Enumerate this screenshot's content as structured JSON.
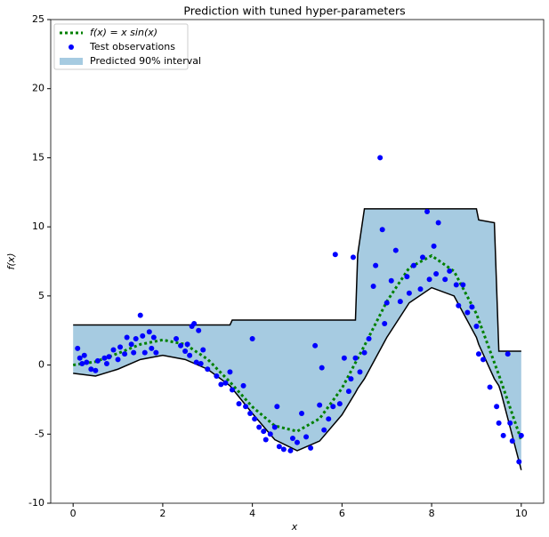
{
  "chart_data": {
    "type": "line",
    "title": "Prediction with tuned hyper-parameters",
    "xlabel": "x",
    "ylabel": "f(x)",
    "xlim": [
      -0.5,
      10.5
    ],
    "ylim": [
      -10,
      25
    ],
    "xticks": [
      0,
      2,
      4,
      6,
      8,
      10
    ],
    "yticks": [
      -10,
      -5,
      0,
      5,
      10,
      15,
      20,
      25
    ],
    "grid": false,
    "legend": "upper left",
    "series": [
      {
        "name": "f(x) = x sin(x)",
        "kind": "line",
        "color": "#008000",
        "x": [
          0,
          0.5,
          1,
          1.5,
          2,
          2.5,
          3,
          3.5,
          4,
          4.5,
          5,
          5.5,
          6,
          6.5,
          7,
          7.5,
          8,
          8.5,
          9,
          9.5,
          10
        ],
        "values": [
          0,
          0.24,
          0.841,
          1.496,
          1.819,
          1.496,
          0.423,
          -1.228,
          -3.027,
          -4.399,
          -4.795,
          -3.88,
          -1.676,
          1.398,
          4.599,
          7.035,
          7.915,
          6.787,
          3.709,
          -0.714,
          -5.44
        ]
      },
      {
        "name": "Test observations",
        "kind": "scatter",
        "color": "#0000ff",
        "x": [
          0.1,
          0.15,
          0.2,
          0.25,
          0.3,
          0.4,
          0.5,
          0.55,
          0.7,
          0.75,
          0.8,
          0.9,
          1.0,
          1.05,
          1.15,
          1.2,
          1.3,
          1.35,
          1.4,
          1.5,
          1.55,
          1.6,
          1.7,
          1.75,
          1.8,
          1.85,
          2.3,
          2.4,
          2.5,
          2.55,
          2.6,
          2.65,
          2.7,
          2.75,
          2.8,
          2.85,
          2.9,
          3.0,
          3.2,
          3.3,
          3.4,
          3.5,
          3.55,
          3.7,
          3.8,
          3.85,
          3.95,
          4.0,
          4.05,
          4.15,
          4.25,
          4.3,
          4.4,
          4.5,
          4.55,
          4.6,
          4.7,
          4.85,
          4.9,
          5.0,
          5.1,
          5.2,
          5.3,
          5.4,
          5.5,
          5.55,
          5.6,
          5.7,
          5.8,
          5.85,
          5.95,
          6.05,
          6.15,
          6.2,
          6.25,
          6.3,
          6.4,
          6.5,
          6.6,
          6.7,
          6.75,
          6.85,
          6.9,
          6.95,
          7.0,
          7.1,
          7.2,
          7.3,
          7.45,
          7.5,
          7.6,
          7.75,
          7.8,
          7.9,
          7.95,
          8.05,
          8.1,
          8.15,
          8.3,
          8.4,
          8.55,
          8.6,
          8.7,
          8.8,
          8.9,
          9.0,
          9.05,
          9.15,
          9.3,
          9.45,
          9.5,
          9.6,
          9.7,
          9.75,
          9.8,
          9.95,
          10.0
        ],
        "values": [
          1.2,
          0.5,
          0.1,
          0.7,
          0.2,
          -0.3,
          -0.4,
          0.3,
          0.5,
          0.1,
          0.6,
          1.1,
          0.4,
          1.3,
          0.8,
          2.0,
          1.5,
          0.9,
          1.9,
          3.6,
          2.1,
          0.9,
          2.4,
          1.2,
          2.0,
          0.9,
          1.9,
          1.4,
          1.0,
          1.5,
          0.7,
          2.8,
          3.0,
          0.2,
          2.5,
          0.1,
          1.1,
          -0.3,
          -0.8,
          -1.4,
          -1.3,
          -0.5,
          -1.8,
          -2.8,
          -1.5,
          -3.0,
          -3.5,
          1.9,
          -3.9,
          -4.5,
          -4.8,
          -5.4,
          -5.0,
          -4.5,
          -3.0,
          -5.9,
          -6.1,
          -6.2,
          -5.3,
          -5.6,
          -3.5,
          -5.2,
          -6.0,
          1.4,
          -2.9,
          -0.2,
          -4.7,
          -3.9,
          -3.0,
          8.0,
          -2.8,
          0.5,
          -1.9,
          -1.0,
          7.8,
          0.5,
          -0.5,
          0.9,
          1.9,
          5.7,
          7.2,
          15.0,
          9.8,
          3.0,
          4.5,
          6.1,
          8.3,
          4.6,
          6.4,
          5.2,
          7.2,
          5.5,
          7.8,
          11.1,
          6.2,
          8.6,
          6.6,
          10.3,
          6.2,
          6.8,
          5.8,
          4.3,
          5.8,
          3.8,
          4.2,
          2.8,
          0.8,
          0.4,
          -1.6,
          -3.0,
          -4.2,
          -5.1,
          0.8,
          -4.2,
          -5.5,
          -7.0,
          -5.1
        ]
      },
      {
        "name": "Predicted 90% interval",
        "kind": "band",
        "color": "#a6cbe1",
        "edgecolor": "#000000",
        "x": [
          0,
          0.5,
          1,
          1.5,
          2,
          2.5,
          3,
          3.5,
          3.55,
          4,
          4.5,
          5,
          5.5,
          6,
          6.3,
          6.35,
          6.5,
          7,
          7.5,
          8,
          8.5,
          9,
          9.05,
          9.4,
          9.5,
          9.55,
          10
        ],
        "upper": [
          2.9,
          2.9,
          2.9,
          2.9,
          2.9,
          2.9,
          2.9,
          2.9,
          3.25,
          3.25,
          3.25,
          3.25,
          3.25,
          3.25,
          3.25,
          8,
          11.3,
          11.3,
          11.3,
          11.3,
          11.3,
          11.3,
          10.5,
          10.3,
          1.0,
          1.0,
          1.0
        ],
        "lower": [
          -0.6,
          -0.8,
          -0.3,
          0.4,
          0.7,
          0.4,
          -0.3,
          -1.5,
          -1.7,
          -3.5,
          -5.4,
          -6.2,
          -5.5,
          -3.6,
          -2.0,
          -1.7,
          -1.0,
          2.0,
          4.5,
          5.6,
          5.0,
          2.0,
          1.5,
          -1.0,
          -1.5,
          -2.0,
          -7.6
        ]
      }
    ]
  }
}
